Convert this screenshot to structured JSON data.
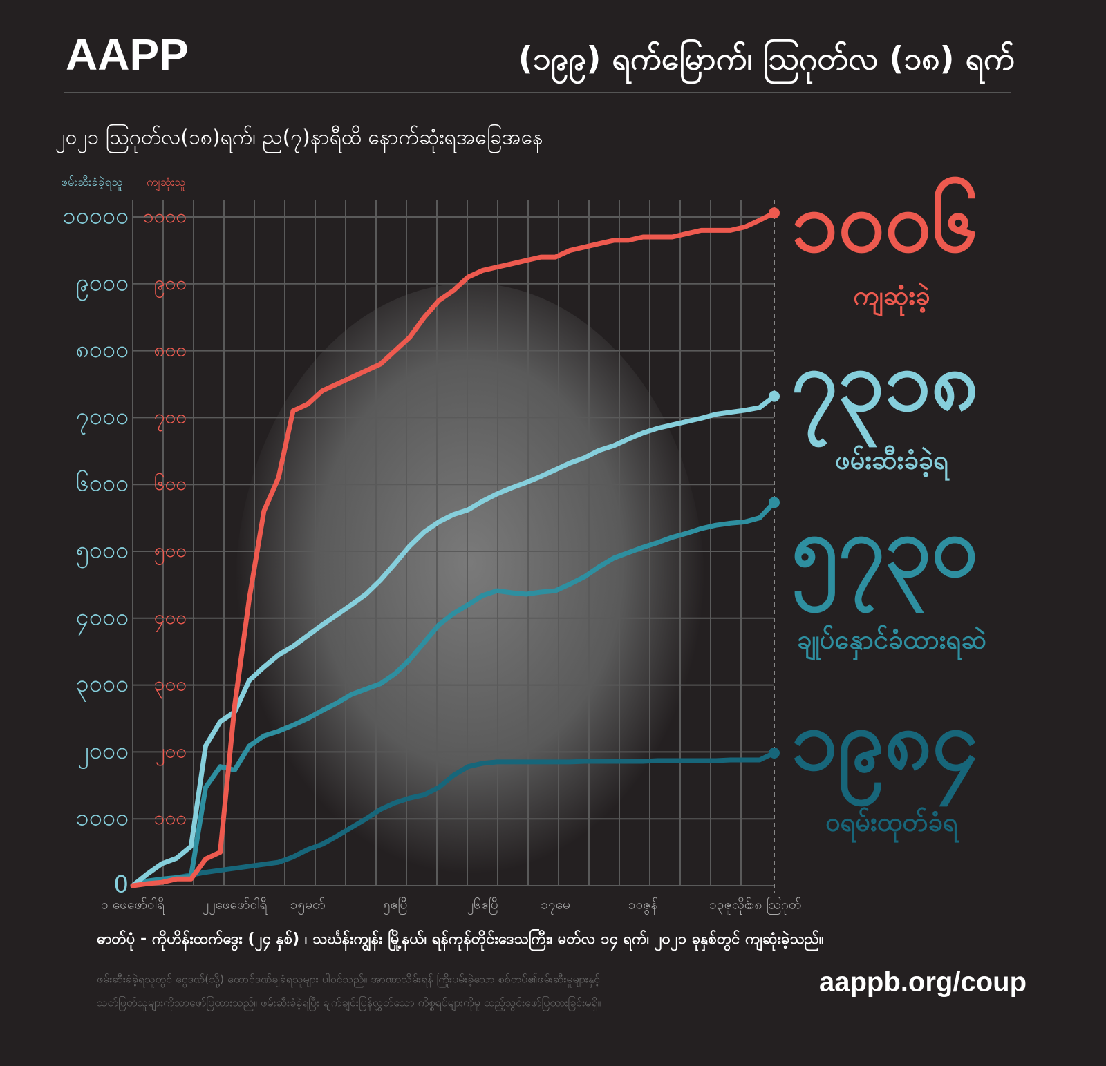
{
  "header": {
    "brand": "AAPP"
  },
  "chart_data": {
    "type": "line",
    "title": "(၁၉၉) ရက်မြောက်၊ ဩဂုတ်လ (၁၈) ရက်",
    "subtitle": "၂၀၂၁ ဩဂုတ်လ(၁၈)ရက်၊ ည(၇)နာရီထိ နောက်ဆုံးရအခြေအနေ",
    "y_label": "ဖမ်းဆီးခံခဲ့ရသူ",
    "y2_label": "ကျဆုံးသူ",
    "categories": [
      "၁ ဖေဖော်ဝါရီ",
      null,
      null,
      null,
      null,
      null,
      null,
      "၂၂ဖေဖော်ဝါရီ",
      null,
      null,
      null,
      null,
      "၁၅မတ်",
      null,
      null,
      null,
      null,
      null,
      "၅ဧပြီ",
      null,
      null,
      null,
      null,
      null,
      "၂၆ဧပြီ",
      null,
      null,
      null,
      null,
      "၁၇မေ",
      null,
      null,
      null,
      null,
      null,
      "၁၀ဇွန်",
      null,
      null,
      null,
      null,
      null,
      "၁၃ဇူလိုင်",
      null,
      null,
      "၁၈ ဩဂုတ်"
    ],
    "series": [
      {
        "name": "ကျဆုံးခဲ့",
        "color": "#ee5a4f",
        "axis": "y2",
        "values": [
          0,
          3,
          5,
          10,
          10,
          40,
          50,
          270,
          430,
          560,
          610,
          710,
          720,
          740,
          750,
          760,
          770,
          780,
          800,
          820,
          850,
          875,
          890,
          910,
          920,
          925,
          930,
          935,
          940,
          940,
          950,
          955,
          960,
          965,
          965,
          970,
          970,
          970,
          975,
          980,
          980,
          980,
          985,
          995,
          1006
        ],
        "value_labels": [
          null,
          null,
          null,
          null,
          null,
          null,
          null,
          null,
          null,
          null,
          null,
          null,
          null,
          null,
          null,
          null,
          null,
          null,
          null,
          null,
          null,
          null,
          null,
          null,
          null,
          null,
          null,
          null,
          null,
          null,
          null,
          null,
          null,
          null,
          null,
          null,
          null,
          null,
          null,
          null,
          null,
          null,
          null,
          null,
          "၁၀၀၆"
        ]
      },
      {
        "name": "ဖမ်းဆီးခံခဲ့ရ",
        "color": "#86cfdc",
        "values": [
          0,
          175,
          330,
          410,
          590,
          2090,
          2450,
          2600,
          3070,
          3270,
          3450,
          3580,
          3740,
          3900,
          4050,
          4200,
          4360,
          4570,
          4820,
          5080,
          5290,
          5440,
          5550,
          5620,
          5750,
          5860,
          5950,
          6030,
          6120,
          6220,
          6320,
          6400,
          6510,
          6580,
          6680,
          6770,
          6840,
          6890,
          6940,
          6990,
          7050,
          7080,
          7110,
          7150,
          7318
        ],
        "value_labels": [
          null,
          null,
          null,
          null,
          null,
          null,
          null,
          null,
          null,
          null,
          null,
          null,
          null,
          null,
          null,
          null,
          null,
          null,
          null,
          null,
          null,
          null,
          null,
          null,
          null,
          null,
          null,
          null,
          null,
          null,
          null,
          null,
          null,
          null,
          null,
          null,
          null,
          null,
          null,
          null,
          null,
          null,
          null,
          null,
          "၇၃၁၈"
        ]
      },
      {
        "name": "ချုပ်နှောင်ခံထားရဆဲ",
        "color": "#2e8fa0",
        "values": [
          0,
          70,
          100,
          120,
          140,
          1470,
          1780,
          1730,
          2090,
          2240,
          2310,
          2400,
          2500,
          2620,
          2730,
          2860,
          2940,
          3020,
          3170,
          3380,
          3640,
          3900,
          4070,
          4200,
          4340,
          4410,
          4380,
          4360,
          4390,
          4410,
          4510,
          4620,
          4770,
          4900,
          4980,
          5060,
          5130,
          5210,
          5270,
          5340,
          5390,
          5420,
          5440,
          5500,
          5730
        ],
        "value_labels": [
          null,
          null,
          null,
          null,
          null,
          null,
          null,
          null,
          null,
          null,
          null,
          null,
          null,
          null,
          null,
          null,
          null,
          null,
          null,
          null,
          null,
          null,
          null,
          null,
          null,
          null,
          null,
          null,
          null,
          null,
          null,
          null,
          null,
          null,
          null,
          null,
          null,
          null,
          null,
          null,
          null,
          null,
          null,
          null,
          "၅၇၃၀"
        ]
      },
      {
        "name": "ဝရမ်းထုတ်ခံရ",
        "color": "#17667a",
        "values": [
          0,
          70,
          90,
          120,
          160,
          200,
          230,
          260,
          290,
          320,
          350,
          430,
          540,
          620,
          740,
          870,
          1000,
          1140,
          1240,
          1310,
          1360,
          1470,
          1650,
          1780,
          1830,
          1850,
          1850,
          1850,
          1850,
          1850,
          1850,
          1860,
          1860,
          1860,
          1860,
          1860,
          1870,
          1870,
          1870,
          1870,
          1870,
          1880,
          1880,
          1880,
          1984
        ],
        "value_labels": [
          null,
          null,
          null,
          null,
          null,
          null,
          null,
          null,
          null,
          null,
          null,
          null,
          null,
          null,
          null,
          null,
          null,
          null,
          null,
          null,
          null,
          null,
          null,
          null,
          null,
          null,
          null,
          null,
          null,
          null,
          null,
          null,
          null,
          null,
          null,
          null,
          null,
          null,
          null,
          null,
          null,
          null,
          null,
          null,
          "၁၉၈၄"
        ]
      }
    ],
    "ylim": [
      0,
      10000
    ],
    "yticks": [
      0,
      {
        "value": 1000,
        "label": "၁၀၀၀"
      },
      {
        "value": 2000,
        "label": "၂၀၀၀"
      },
      {
        "value": 3000,
        "label": "၃၀၀၀"
      },
      {
        "value": 4000,
        "label": "၄၀၀၀"
      },
      {
        "value": 5000,
        "label": "၅၀၀၀"
      },
      {
        "value": 6000,
        "label": "၆၀၀၀"
      },
      {
        "value": 7000,
        "label": "၇၀၀၀"
      },
      {
        "value": 8000,
        "label": "၈၀၀၀"
      },
      {
        "value": 9000,
        "label": "၉၀၀၀"
      },
      {
        "value": 10000,
        "label": "၁၀၀၀၀"
      }
    ],
    "y2lim": [
      0,
      1000
    ],
    "y2ticks": [
      {
        "value": 100,
        "label": "၁၀၀"
      },
      {
        "value": 200,
        "label": "၂၀၀"
      },
      {
        "value": 300,
        "label": "၃၀၀"
      },
      {
        "value": 400,
        "label": "၄၀၀"
      },
      {
        "value": 500,
        "label": "၅၀၀"
      },
      {
        "value": 600,
        "label": "၆၀၀"
      },
      {
        "value": 700,
        "label": "၇၀၀"
      },
      {
        "value": 800,
        "label": "၈၀၀"
      },
      {
        "value": 900,
        "label": "၉၀၀"
      },
      {
        "value": 1000,
        "label": "၁၀၀၀"
      }
    ],
    "grid": true
  },
  "footer": {
    "caption": "ဓာတ်ပုံ - ကိုဟိန်းထက်ဒွေး (၂၄ နှစ်) ၊ သင်္ဃန်းကျွန်း မြို့နယ်၊ ရန်ကုန်တိုင်းဒေသကြီး၊ မတ်လ ၁၄ ရက်၊ ၂၀၂၁ ခုနှစ်တွင် ကျဆုံးခဲ့သည်။",
    "notes": [
      "ဖမ်းဆီးခံခဲ့ရသူတွင် ငွေဒဏ်(သို့) ထောင်ဒဏ်ချခံရသူများ ပါဝင်သည်။ အာဏာသိမ်းရန် ကြိုးပမ်းခဲ့သော စစ်တပ်၏ဖမ်းဆီးမှုများနှင့်",
      "သတ်ဖြတ်သူများကိုသာဖော်ပြထားသည်။ ဖမ်းဆီးခံခဲ့ရပြီး ချက်ချင်းပြန်လွှတ်သော ကိစ္စရပ်များကိုမူ ထည့်သွင်းဖော်ပြထားခြင်းမရှိ။"
    ],
    "url": "aappb.org/coup"
  }
}
